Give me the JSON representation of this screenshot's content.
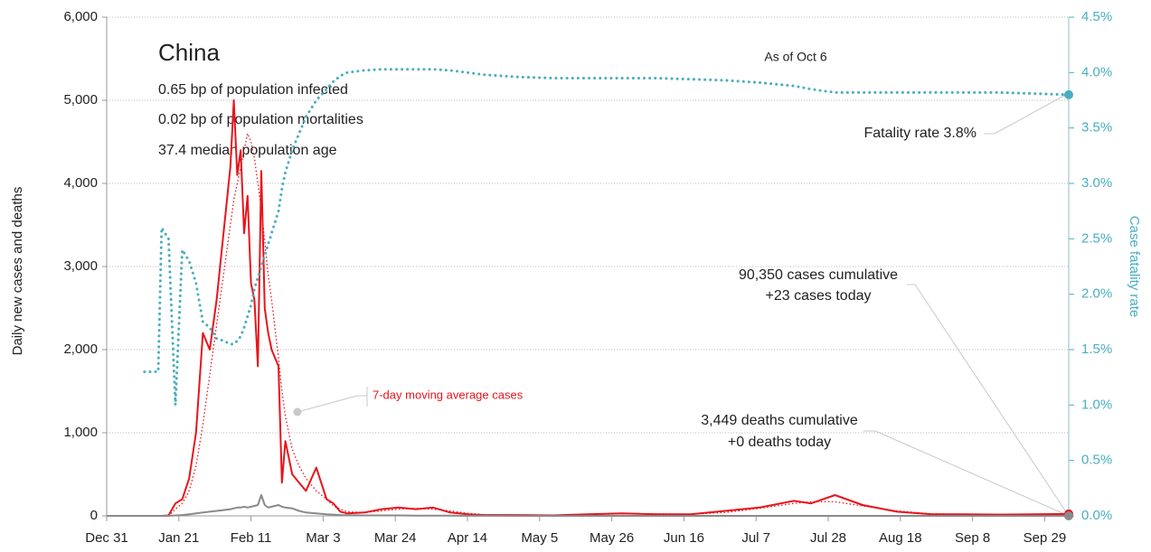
{
  "chart_data": {
    "type": "line",
    "title": "China",
    "annotations": [
      "0.65 bp of population infected",
      "0.02 bp of population mortalities",
      "37.4 median population age",
      "As of Oct 6",
      "Fatality rate 3.8%",
      "90,350 cases cumulative",
      "+23 cases today",
      "3,449 deaths cumulative",
      "+0 deaths today",
      "7-day moving average cases"
    ],
    "ylabel": "Daily new cases and deaths",
    "y2label": "Case fatality rate",
    "x": [
      0,
      5,
      10,
      11,
      15,
      16,
      18,
      20,
      22,
      24,
      26,
      28,
      30,
      32,
      34,
      36,
      37,
      38,
      39,
      40,
      41,
      42,
      43,
      44,
      45,
      46,
      47,
      48,
      50,
      51,
      52,
      54,
      56,
      58,
      61,
      64,
      66,
      68,
      70,
      75,
      80,
      85,
      90,
      95,
      100,
      105,
      110,
      120,
      130,
      140,
      150,
      160,
      170,
      180,
      190,
      200,
      205,
      212,
      220,
      230,
      240,
      250,
      260,
      270,
      280
    ],
    "xlim": [
      0,
      280
    ],
    "xticks": [
      {
        "value": 0,
        "label": "Dec 31"
      },
      {
        "value": 21,
        "label": "Jan 21"
      },
      {
        "value": 42,
        "label": "Feb 11"
      },
      {
        "value": 63,
        "label": "Mar 3"
      },
      {
        "value": 84,
        "label": "Mar 24"
      },
      {
        "value": 105,
        "label": "Apr 14"
      },
      {
        "value": 126,
        "label": "May 5"
      },
      {
        "value": 147,
        "label": "May 26"
      },
      {
        "value": 168,
        "label": "Jun 16"
      },
      {
        "value": 189,
        "label": "Jul 7"
      },
      {
        "value": 210,
        "label": "Jul 28"
      },
      {
        "value": 231,
        "label": "Aug 18"
      },
      {
        "value": 252,
        "label": "Sep 8"
      },
      {
        "value": 273,
        "label": "Sep 29"
      }
    ],
    "ylim": [
      0,
      6000
    ],
    "yticks": [
      0,
      {
        "value": 1000,
        "label": "1,000"
      },
      {
        "value": 2000,
        "label": "2,000"
      },
      {
        "value": 3000,
        "label": "3,000"
      },
      {
        "value": 4000,
        "label": "4,000"
      },
      {
        "value": 5000,
        "label": "5,000"
      },
      {
        "value": 6000,
        "label": "6,000"
      }
    ],
    "y2lim": [
      0,
      4.5
    ],
    "y2ticks": [
      {
        "value": 0,
        "label": "0.0%"
      },
      {
        "value": 0.5,
        "label": "0.5%"
      },
      {
        "value": 1,
        "label": "1.0%"
      },
      {
        "value": 1.5,
        "label": "1.5%"
      },
      {
        "value": 2,
        "label": "2.0%"
      },
      {
        "value": 2.5,
        "label": "2.5%"
      },
      {
        "value": 3,
        "label": "3.0%"
      },
      {
        "value": 3.5,
        "label": "3.5%"
      },
      {
        "value": 4,
        "label": "4.0%"
      },
      {
        "value": 4.5,
        "label": "4.5%"
      }
    ],
    "grid": true,
    "series": [
      {
        "name": "Cases",
        "color": "#e8141c",
        "style": "solid",
        "values": [
          0,
          0,
          0,
          0,
          0,
          0,
          5,
          150,
          200,
          450,
          1000,
          2200,
          2000,
          2600,
          3400,
          4200,
          5000,
          4100,
          4400,
          3400,
          3850,
          2800,
          2600,
          1800,
          4150,
          2500,
          2200,
          2000,
          1800,
          400,
          900,
          500,
          400,
          300,
          580,
          200,
          150,
          50,
          30,
          40,
          80,
          100,
          80,
          100,
          40,
          20,
          10,
          10,
          5,
          20,
          30,
          20,
          20,
          60,
          100,
          180,
          150,
          250,
          130,
          50,
          20,
          20,
          15,
          20,
          23
        ]
      },
      {
        "name": "7-day moving average cases",
        "color": "#e8141c",
        "style": "dotted",
        "values": [
          0,
          0,
          0,
          0,
          0,
          0,
          0,
          80,
          150,
          300,
          600,
          1100,
          1700,
          2300,
          2900,
          3500,
          3800,
          4000,
          4200,
          4400,
          4600,
          4500,
          4300,
          4000,
          3700,
          3300,
          2900,
          2600,
          1900,
          1500,
          1200,
          800,
          600,
          450,
          300,
          200,
          120,
          80,
          50,
          40,
          60,
          80,
          90,
          80,
          60,
          30,
          15,
          10,
          8,
          15,
          25,
          25,
          20,
          40,
          90,
          150,
          170,
          170,
          120,
          60,
          25,
          20,
          18,
          18,
          20
        ]
      },
      {
        "name": "Deaths",
        "color": "#8a8a8a",
        "style": "solid",
        "values": [
          0,
          0,
          0,
          0,
          0,
          0,
          0,
          5,
          10,
          20,
          30,
          40,
          50,
          60,
          70,
          80,
          90,
          100,
          100,
          110,
          100,
          110,
          120,
          130,
          250,
          130,
          100,
          110,
          130,
          110,
          100,
          90,
          60,
          40,
          30,
          20,
          15,
          10,
          8,
          5,
          5,
          5,
          3,
          3,
          2,
          1,
          1,
          0,
          0,
          0,
          0,
          0,
          0,
          0,
          0,
          0,
          0,
          0,
          0,
          0,
          0,
          0,
          0,
          0,
          0
        ]
      },
      {
        "name": "Case fatality rate",
        "color": "#4aaec0",
        "style": "dotted-thick",
        "axis": "y2",
        "values": [
          null,
          null,
          null,
          1.3,
          1.3,
          2.6,
          2.5,
          1.0,
          2.4,
          2.3,
          2.1,
          1.75,
          1.7,
          1.6,
          1.58,
          1.55,
          1.55,
          1.58,
          1.62,
          1.7,
          1.8,
          1.9,
          2.05,
          2.15,
          2.25,
          2.35,
          2.45,
          2.55,
          2.75,
          2.95,
          3.1,
          3.3,
          3.45,
          3.6,
          3.75,
          3.85,
          3.92,
          3.97,
          4.0,
          4.02,
          4.03,
          4.03,
          4.03,
          4.03,
          4.02,
          4.0,
          3.98,
          3.96,
          3.95,
          3.95,
          3.95,
          3.95,
          3.94,
          3.93,
          3.91,
          3.88,
          3.85,
          3.82,
          3.82,
          3.82,
          3.82,
          3.82,
          3.82,
          3.81,
          3.8
        ]
      }
    ]
  }
}
